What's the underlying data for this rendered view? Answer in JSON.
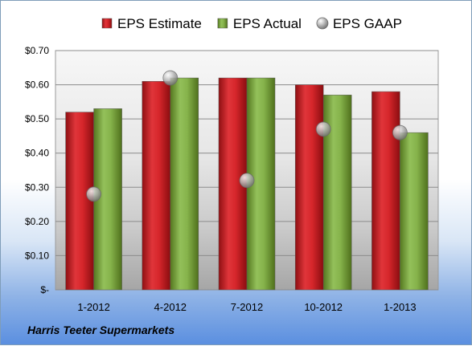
{
  "chart_data": {
    "type": "bar",
    "categories": [
      "1-2012",
      "4-2012",
      "7-2012",
      "10-2012",
      "1-2013"
    ],
    "series": [
      {
        "name": "EPS Estimate",
        "values": [
          0.52,
          0.61,
          0.62,
          0.6,
          0.58
        ],
        "color": "#cc1f24",
        "kind": "bar"
      },
      {
        "name": "EPS Actual",
        "values": [
          0.53,
          0.62,
          0.62,
          0.57,
          0.46
        ],
        "color": "#77a33b",
        "kind": "bar"
      },
      {
        "name": "EPS GAAP",
        "values": [
          0.28,
          0.62,
          0.32,
          0.47,
          0.46
        ],
        "color": "#b8b8b8",
        "kind": "marker"
      }
    ],
    "y_ticks": [
      0,
      0.1,
      0.2,
      0.3,
      0.4,
      0.5,
      0.6,
      0.7
    ],
    "y_tick_labels": [
      "$-",
      "$0.10",
      "$0.20",
      "$0.30",
      "$0.40",
      "$0.50",
      "$0.60",
      "$0.70"
    ],
    "ylim": [
      0,
      0.7
    ],
    "grid": true,
    "legend_position": "top",
    "title": "",
    "xlabel": "",
    "ylabel": ""
  },
  "footer": {
    "company": "Harris Teeter Supermarkets"
  }
}
